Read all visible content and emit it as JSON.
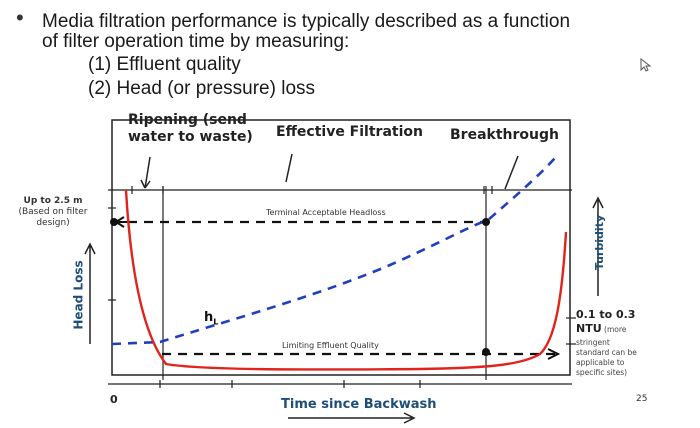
{
  "slide": {
    "bullet_char": "•",
    "title_lines": [
      "Media filtration performance is typically described as a function",
      "of filter operation time by measuring:"
    ],
    "sub_items": [
      "(1) Effluent quality",
      "(2) Head (or pressure) loss"
    ],
    "page_number": "25"
  },
  "figure": {
    "phases": {
      "ripening": [
        "Ripening (send",
        "water to waste)"
      ],
      "effective": "Effective Filtration",
      "breakthrough": "Breakthrough"
    },
    "left_note": {
      "bold": "Up to 2.5 m",
      "lines": [
        "(Based on filter",
        "design)"
      ]
    },
    "terminal_headloss_label": "Terminal Acceptable Headloss",
    "limiting_quality_label": "Limiting Effluent Quality",
    "hl_label": "h",
    "hl_subscript": "L",
    "y_left_title": "Head Loss",
    "y_right_title": "Turbidity",
    "x_origin": "0",
    "x_title": "Time since Backwash",
    "right_note": {
      "bold": "0.1 to 0.3",
      "ntu": "NTU",
      "more": "(more",
      "lines": [
        "stringent",
        "standard can be",
        "applicable to",
        "specific sites)"
      ]
    },
    "colors": {
      "turbidity_curve": "#e0241b",
      "headloss_curve": "#1f3fbf",
      "threshold_line": "#111111",
      "axis_title": "#1f4e79"
    }
  }
}
